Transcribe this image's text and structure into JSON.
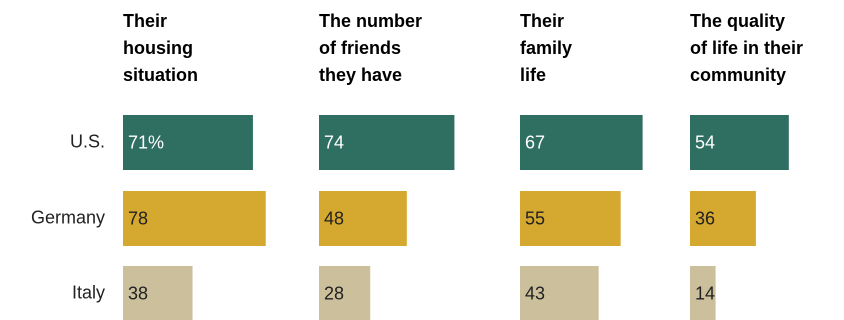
{
  "chart_data": {
    "type": "bar",
    "categories": [
      "U.S.",
      "Germany",
      "Italy"
    ],
    "colors": [
      "#2f6f62",
      "#d5a82f",
      "#cbbf9c"
    ],
    "label_colors": [
      "#ffffff",
      "#222222",
      "#222222"
    ],
    "panels": [
      {
        "title_lines": [
          "Their",
          "housing",
          "situation"
        ],
        "values": [
          71,
          78,
          38
        ],
        "value_labels": [
          "71%",
          "78",
          "38"
        ]
      },
      {
        "title_lines": [
          "The number",
          "of friends",
          "they have"
        ],
        "values": [
          74,
          48,
          28
        ],
        "value_labels": [
          "74",
          "48",
          "28"
        ]
      },
      {
        "title_lines": [
          "Their",
          "family",
          "life"
        ],
        "values": [
          67,
          55,
          43
        ],
        "value_labels": [
          "67",
          "55",
          "43"
        ]
      },
      {
        "title_lines": [
          "The quality",
          "of life in their",
          "community"
        ],
        "values": [
          54,
          36,
          14
        ],
        "value_labels": [
          "54",
          "36",
          "14"
        ]
      }
    ]
  }
}
